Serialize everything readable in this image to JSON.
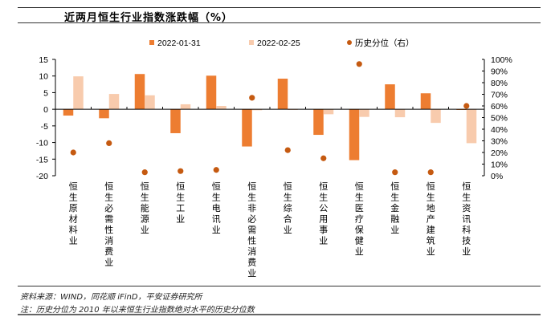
{
  "header": {
    "title": "近两月恒生行业指数涨跌幅（%）"
  },
  "footer": {
    "source": "资料来源：WIND，同花顺 iFinD，平安证券研究所",
    "note": "注：历史分位为 2010 年以来恒生行业指数绝对水平的历史分位数"
  },
  "colors": {
    "series1": "#ED7D31",
    "series2": "#F8CBAD",
    "percentile": "#C55A11"
  },
  "chart_data": {
    "type": "bar",
    "title": "近两月恒生行业指数涨跌幅（%）",
    "xlabel": "",
    "ylabel": "",
    "y2label": "",
    "categories": [
      "恒生原材料业",
      "恒生必需性消费业",
      "恒生能源业",
      "恒生工业",
      "恒生电讯业",
      "恒生非必需性消费业",
      "恒生综合业",
      "恒生公用事业",
      "恒生医疗保健业",
      "恒生金融业",
      "恒生地产建筑业",
      "恒生资讯科技业"
    ],
    "series": [
      {
        "name": "2022-01-31",
        "type": "bar",
        "axis": "left",
        "values": [
          -1.9,
          -2.7,
          10.6,
          -7.2,
          10.1,
          -11.2,
          9.2,
          -7.7,
          -15.3,
          7.5,
          4.8,
          -0.2
        ]
      },
      {
        "name": "2022-02-25",
        "type": "bar",
        "axis": "left",
        "values": [
          9.9,
          4.6,
          4.2,
          1.5,
          1.0,
          -0.3,
          -0.2,
          -1.5,
          -2.3,
          -2.4,
          -4.1,
          -10.2
        ]
      },
      {
        "name": "历史分位（右）",
        "type": "scatter",
        "axis": "right",
        "values": [
          20,
          28,
          3,
          4,
          5,
          67,
          22,
          15,
          96,
          3,
          3,
          60
        ]
      }
    ],
    "ylim": [
      -20,
      15
    ],
    "yticks": [
      15,
      10,
      5,
      0,
      -5,
      -10,
      -15,
      -20
    ],
    "y2lim": [
      0,
      100
    ],
    "y2ticks": [
      "100%",
      "90%",
      "80%",
      "70%",
      "60%",
      "50%",
      "40%",
      "30%",
      "20%",
      "10%",
      "0%"
    ],
    "legend": [
      "2022-01-31",
      "2022-02-25",
      "历史分位（右）"
    ],
    "legend_position": "top",
    "grid": false
  }
}
